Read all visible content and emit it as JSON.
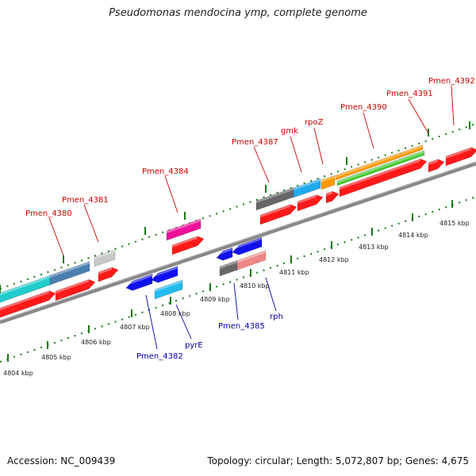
{
  "title": "Pseudomonas mendocina ymp, complete genome",
  "accession": "Accession: NC_009439",
  "summary": "Topology: circular; Length: 5,072,807 bp; Genes: 4,675",
  "colors": {
    "label_forward": "#cc0000",
    "label_reverse": "#0000aa",
    "tick": "#1a7a1a",
    "backbone": "#888888"
  },
  "scale_labels": [
    "4804 kbp",
    "4805 kbp",
    "4806 kbp",
    "4807 kbp",
    "4808 kbp",
    "4809 kbp",
    "4810 kbp",
    "4811 kbp",
    "4812 kbp",
    "4813 kbp",
    "4814 kbp",
    "4815 kbp"
  ],
  "forward_gene_labels": [
    "Pmen_4380",
    "Pmen_4381",
    "Pmen_4384",
    "Pmen_4387",
    "gmk",
    "rpoZ",
    "Pmen_4390",
    "Pmen_4391",
    "Pmen_4392"
  ],
  "reverse_gene_labels": [
    "Pmen_4382",
    "pyrE",
    "Pmen_4385",
    "rph"
  ]
}
